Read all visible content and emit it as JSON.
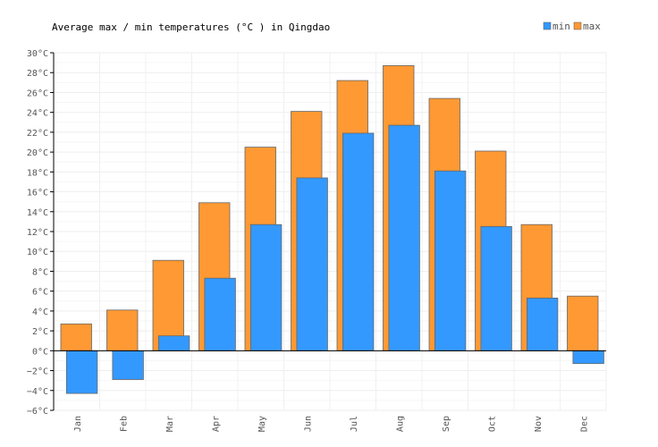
{
  "chart_data": {
    "type": "bar",
    "title": "Average max / min temperatures (°C ) in Qingdao",
    "xlabel": "",
    "ylabel": "",
    "categories": [
      "Jan",
      "Feb",
      "Mar",
      "Apr",
      "May",
      "Jun",
      "Jul",
      "Aug",
      "Sep",
      "Oct",
      "Nov",
      "Dec"
    ],
    "series": [
      {
        "name": "min",
        "color": "#3399ff",
        "values": [
          -4.3,
          -2.9,
          1.5,
          7.3,
          12.7,
          17.4,
          21.9,
          22.7,
          18.1,
          12.5,
          5.3,
          -1.3
        ]
      },
      {
        "name": "max",
        "color": "#ff9933",
        "values": [
          2.7,
          4.1,
          9.1,
          14.9,
          20.5,
          24.1,
          27.2,
          28.7,
          25.4,
          20.1,
          12.7,
          5.5
        ]
      }
    ],
    "ylim": [
      -6,
      30
    ],
    "y_ticks": [
      "−6°C",
      "−4°C",
      "−2°C",
      "0°C",
      "2°C",
      "4°C",
      "6°C",
      "8°C",
      "10°C",
      "12°C",
      "14°C",
      "16°C",
      "18°C",
      "20°C",
      "22°C",
      "24°C",
      "26°C",
      "28°C",
      "30°C"
    ],
    "y_tick_values": [
      -6,
      -4,
      -2,
      0,
      2,
      4,
      6,
      8,
      10,
      12,
      14,
      16,
      18,
      20,
      22,
      24,
      26,
      28,
      30
    ],
    "grid": true,
    "legend": "top-right"
  }
}
